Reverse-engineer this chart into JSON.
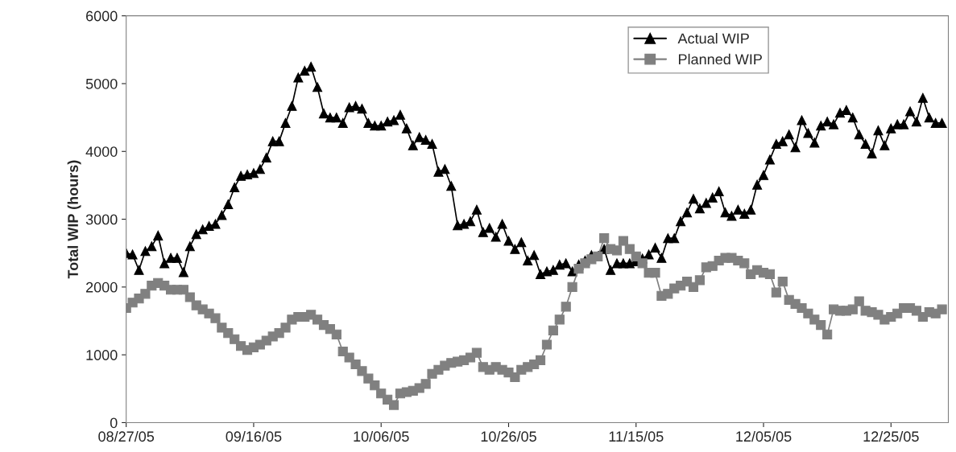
{
  "chart_data": {
    "type": "line",
    "ylabel": "Total WIP (hours)",
    "x": [
      "2005-08-27",
      "2005-08-28",
      "2005-08-29",
      "2005-08-30",
      "2005-08-31",
      "2005-09-01",
      "2005-09-02",
      "2005-09-03",
      "2005-09-04",
      "2005-09-05",
      "2005-09-06",
      "2005-09-07",
      "2005-09-08",
      "2005-09-09",
      "2005-09-10",
      "2005-09-11",
      "2005-09-12",
      "2005-09-13",
      "2005-09-14",
      "2005-09-15",
      "2005-09-16",
      "2005-09-17",
      "2005-09-18",
      "2005-09-19",
      "2005-09-20",
      "2005-09-21",
      "2005-09-22",
      "2005-09-23",
      "2005-09-24",
      "2005-09-25",
      "2005-09-26",
      "2005-09-27",
      "2005-09-28",
      "2005-09-29",
      "2005-09-30",
      "2005-10-01",
      "2005-10-02",
      "2005-10-03",
      "2005-10-04",
      "2005-10-05",
      "2005-10-06",
      "2005-10-07",
      "2005-10-08",
      "2005-10-09",
      "2005-10-10",
      "2005-10-11",
      "2005-10-12",
      "2005-10-13",
      "2005-10-14",
      "2005-10-15",
      "2005-10-16",
      "2005-10-17",
      "2005-10-18",
      "2005-10-19",
      "2005-10-20",
      "2005-10-21",
      "2005-10-22",
      "2005-10-23",
      "2005-10-24",
      "2005-10-25",
      "2005-10-26",
      "2005-10-27",
      "2005-10-28",
      "2005-10-29",
      "2005-10-30",
      "2005-10-31",
      "2005-11-01",
      "2005-11-02",
      "2005-11-03",
      "2005-11-04",
      "2005-11-05",
      "2005-11-06",
      "2005-11-07",
      "2005-11-08",
      "2005-11-09",
      "2005-11-10",
      "2005-11-11",
      "2005-11-12",
      "2005-11-13",
      "2005-11-14",
      "2005-11-15",
      "2005-11-16",
      "2005-11-17",
      "2005-11-18",
      "2005-11-19",
      "2005-11-20",
      "2005-11-21",
      "2005-11-22",
      "2005-11-23",
      "2005-11-24",
      "2005-11-25",
      "2005-11-26",
      "2005-11-27",
      "2005-11-28",
      "2005-11-29",
      "2005-11-30",
      "2005-12-01",
      "2005-12-02",
      "2005-12-03",
      "2005-12-04",
      "2005-12-05",
      "2005-12-06",
      "2005-12-07",
      "2005-12-08",
      "2005-12-09",
      "2005-12-10",
      "2005-12-11",
      "2005-12-12",
      "2005-12-13",
      "2005-12-14",
      "2005-12-15",
      "2005-12-16",
      "2005-12-17",
      "2005-12-18",
      "2005-12-19",
      "2005-12-20",
      "2005-12-21",
      "2005-12-22",
      "2005-12-23",
      "2005-12-24",
      "2005-12-25",
      "2005-12-26",
      "2005-12-27",
      "2005-12-28",
      "2005-12-29",
      "2005-12-30",
      "2005-12-31",
      "2006-01-01",
      "2006-01-02"
    ],
    "series": [
      {
        "name": "Actual WIP",
        "color": "#000000",
        "marker": "triangle",
        "values": [
          2500,
          2480,
          2250,
          2530,
          2600,
          2760,
          2350,
          2430,
          2430,
          2220,
          2600,
          2780,
          2850,
          2900,
          2930,
          3060,
          3220,
          3470,
          3640,
          3660,
          3680,
          3740,
          3910,
          4150,
          4150,
          4420,
          4670,
          5090,
          5190,
          5250,
          4950,
          4560,
          4500,
          4500,
          4420,
          4650,
          4670,
          4630,
          4420,
          4380,
          4380,
          4440,
          4460,
          4540,
          4340,
          4090,
          4210,
          4170,
          4110,
          3700,
          3740,
          3490,
          2910,
          2930,
          2970,
          3140,
          2810,
          2870,
          2740,
          2930,
          2680,
          2560,
          2660,
          2390,
          2470,
          2190,
          2230,
          2250,
          2330,
          2350,
          2230,
          2330,
          2390,
          2470,
          null,
          2560,
          2250,
          2350,
          2350,
          2350,
          2380,
          2420,
          2480,
          2580,
          2430,
          2720,
          2720,
          2970,
          3100,
          3300,
          3160,
          3240,
          3320,
          3410,
          3100,
          3050,
          3140,
          3080,
          3140,
          3510,
          3650,
          3880,
          4110,
          4150,
          4250,
          4060,
          4460,
          4270,
          4130,
          4380,
          4440,
          4400,
          4570,
          4610,
          4500,
          4250,
          4110,
          3970,
          4310,
          4090,
          4340,
          4400,
          4400,
          4590,
          4440,
          4790,
          4500,
          4420,
          4420
        ]
      },
      {
        "name": "Planned WIP",
        "color": "#808080",
        "marker": "square",
        "values": [
          1690,
          1770,
          1830,
          1900,
          2020,
          2060,
          2020,
          1960,
          1960,
          1960,
          1850,
          1730,
          1670,
          1610,
          1540,
          1400,
          1320,
          1230,
          1130,
          1070,
          1110,
          1150,
          1210,
          1270,
          1320,
          1400,
          1520,
          1560,
          1560,
          1590,
          1520,
          1440,
          1380,
          1300,
          1050,
          960,
          860,
          760,
          650,
          550,
          430,
          340,
          260,
          430,
          450,
          470,
          510,
          570,
          720,
          780,
          840,
          880,
          900,
          920,
          960,
          1030,
          820,
          780,
          820,
          780,
          740,
          670,
          780,
          820,
          860,
          920,
          1150,
          1360,
          1520,
          1710,
          2000,
          2270,
          2350,
          2410,
          2450,
          2720,
          2560,
          2540,
          2680,
          2560,
          2450,
          2350,
          2210,
          2210,
          1870,
          1900,
          1980,
          2020,
          2080,
          2000,
          2100,
          2290,
          2310,
          2390,
          2430,
          2430,
          2390,
          2350,
          2190,
          2250,
          2210,
          2190,
          1920,
          2080,
          1810,
          1750,
          1690,
          1610,
          1520,
          1440,
          1300,
          1670,
          1650,
          1650,
          1670,
          1790,
          1650,
          1630,
          1590,
          1520,
          1560,
          1610,
          1690,
          1690,
          1650,
          1560,
          1630,
          1610,
          1670
        ]
      }
    ],
    "xlim": [
      "2005-08-27",
      "2006-01-03"
    ],
    "xticks": [
      {
        "value": "2005-08-27",
        "label": "08/27/05"
      },
      {
        "value": "2005-09-16",
        "label": "09/16/05"
      },
      {
        "value": "2005-10-06",
        "label": "10/06/05"
      },
      {
        "value": "2005-10-26",
        "label": "10/26/05"
      },
      {
        "value": "2005-11-15",
        "label": "11/15/05"
      },
      {
        "value": "2005-12-05",
        "label": "12/05/05"
      },
      {
        "value": "2005-12-25",
        "label": "12/25/05"
      }
    ],
    "ylim": [
      0,
      6000
    ],
    "yticks": [
      0,
      1000,
      2000,
      3000,
      4000,
      5000,
      6000
    ],
    "grid": false,
    "legend": "top right",
    "line_style": "solid"
  }
}
